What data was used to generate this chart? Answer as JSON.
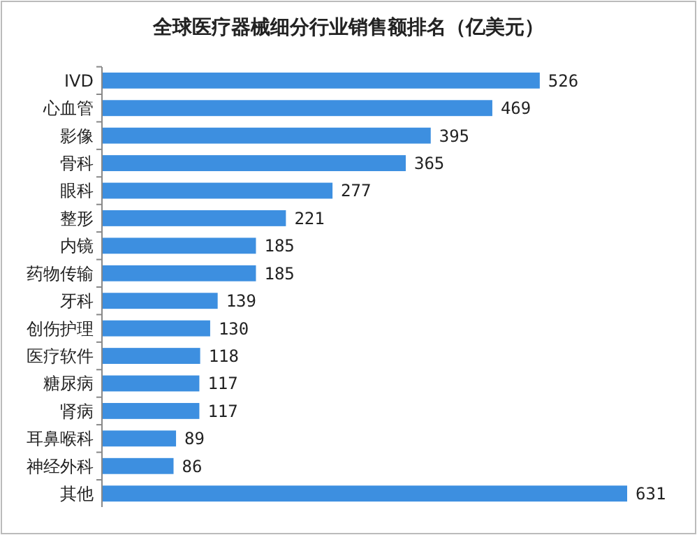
{
  "chart_data": {
    "type": "bar",
    "orientation": "horizontal",
    "xlim": [
      0,
      631
    ],
    "title": "全球医疗器械细分行业销售额排名（亿美元）",
    "categories": [
      "IVD",
      "心血管",
      "影像",
      "骨科",
      "眼科",
      "整形",
      "内镜",
      "药物传输",
      "牙科",
      "创伤护理",
      "医疗软件",
      "糖尿病",
      "肾病",
      "耳鼻喉科",
      "神经外科",
      "其他"
    ],
    "values": [
      526,
      469,
      395,
      365,
      277,
      221,
      185,
      185,
      139,
      130,
      118,
      117,
      117,
      89,
      86,
      631
    ],
    "color": "#3d8fe0",
    "data_labels": true
  }
}
